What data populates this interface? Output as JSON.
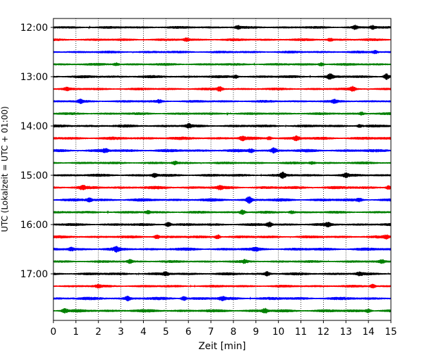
{
  "chart_data": {
    "type": "line",
    "title": "",
    "xlabel": "Zeit  [min]",
    "ylabel": "UTC (Lokalzeit = UTC + 01:00)",
    "xlim": [
      0,
      15
    ],
    "x_ticks": [
      "0",
      "1",
      "2",
      "3",
      "4",
      "5",
      "6",
      "7",
      "8",
      "9",
      "10",
      "11",
      "12",
      "13",
      "14",
      "15"
    ],
    "y_ticks": [
      "12:00",
      "13:00",
      "14:00",
      "15:00",
      "16:00",
      "17:00"
    ],
    "grid": "vertical-dotted",
    "color_cycle": [
      "#000000",
      "#ff0000",
      "#0000ff",
      "#008000"
    ],
    "series": [
      {
        "start": "12:00",
        "amplitude": 0.6,
        "events": [
          [
            8.2,
            0.9
          ],
          [
            13.4,
            1.0
          ],
          [
            14.2,
            1.0
          ]
        ]
      },
      {
        "start": "12:15",
        "amplitude": 0.6,
        "events": [
          [
            5.9,
            0.9
          ],
          [
            12.3,
            0.8
          ]
        ]
      },
      {
        "start": "12:30",
        "amplitude": 0.6,
        "events": [
          [
            14.3,
            0.9
          ]
        ]
      },
      {
        "start": "12:45",
        "amplitude": 0.6,
        "events": [
          [
            2.8,
            0.8
          ],
          [
            11.9,
            1.0
          ]
        ]
      },
      {
        "start": "13:00",
        "amplitude": 0.7,
        "events": [
          [
            12.3,
            1.6
          ],
          [
            14.8,
            1.7
          ],
          [
            8.1,
            0.9
          ]
        ]
      },
      {
        "start": "13:15",
        "amplitude": 0.6,
        "events": [
          [
            7.4,
            1.3
          ],
          [
            13.3,
            1.2
          ],
          [
            0.6,
            0.8
          ]
        ]
      },
      {
        "start": "13:30",
        "amplitude": 0.6,
        "events": [
          [
            1.2,
            1.0
          ],
          [
            4.7,
            0.8
          ],
          [
            12.5,
            0.8
          ]
        ]
      },
      {
        "start": "13:45",
        "amplitude": 0.6,
        "events": [
          [
            13.7,
            0.8
          ]
        ]
      },
      {
        "start": "14:00",
        "amplitude": 0.7,
        "events": [
          [
            6.0,
            1.1
          ],
          [
            13.6,
            0.8
          ]
        ]
      },
      {
        "start": "14:15",
        "amplitude": 0.8,
        "events": [
          [
            8.4,
            1.1
          ],
          [
            10.8,
            1.3
          ],
          [
            9.6,
            0.9
          ]
        ]
      },
      {
        "start": "14:30",
        "amplitude": 0.8,
        "events": [
          [
            2.3,
            1.0
          ],
          [
            9.8,
            1.4
          ],
          [
            8.8,
            1.0
          ]
        ]
      },
      {
        "start": "14:45",
        "amplitude": 0.6,
        "events": [
          [
            5.4,
            0.9
          ],
          [
            11.5,
            0.8
          ]
        ]
      },
      {
        "start": "15:00",
        "amplitude": 0.7,
        "events": [
          [
            4.5,
            1.0
          ],
          [
            10.2,
            1.5
          ],
          [
            13.0,
            0.9
          ]
        ]
      },
      {
        "start": "15:15",
        "amplitude": 0.8,
        "events": [
          [
            1.3,
            1.0
          ],
          [
            7.4,
            0.9
          ],
          [
            14.9,
            1.0
          ]
        ]
      },
      {
        "start": "15:30",
        "amplitude": 0.8,
        "events": [
          [
            8.7,
            1.9
          ],
          [
            1.6,
            1.0
          ],
          [
            13.6,
            0.8
          ]
        ]
      },
      {
        "start": "15:45",
        "amplitude": 0.6,
        "events": [
          [
            8.4,
            1.3
          ],
          [
            10.6,
            0.8
          ],
          [
            4.2,
            0.9
          ]
        ]
      },
      {
        "start": "16:00",
        "amplitude": 0.7,
        "events": [
          [
            5.1,
            1.4
          ],
          [
            9.6,
            1.4
          ],
          [
            12.2,
            1.0
          ]
        ]
      },
      {
        "start": "16:15",
        "amplitude": 0.7,
        "events": [
          [
            4.6,
            1.1
          ],
          [
            7.3,
            1.3
          ],
          [
            14.8,
            0.9
          ]
        ]
      },
      {
        "start": "16:30",
        "amplitude": 0.8,
        "events": [
          [
            2.8,
            1.2
          ],
          [
            0.8,
            0.9
          ],
          [
            9.0,
            0.9
          ]
        ]
      },
      {
        "start": "16:45",
        "amplitude": 0.6,
        "events": [
          [
            3.4,
            1.0
          ],
          [
            8.5,
            0.8
          ],
          [
            14.6,
            0.8
          ]
        ]
      },
      {
        "start": "17:00",
        "amplitude": 0.7,
        "events": [
          [
            9.5,
            1.2
          ],
          [
            5.0,
            1.0
          ],
          [
            13.6,
            0.9
          ]
        ]
      },
      {
        "start": "17:15",
        "amplitude": 0.6,
        "events": [
          [
            2.0,
            0.8
          ],
          [
            14.2,
            1.1
          ]
        ]
      },
      {
        "start": "17:30",
        "amplitude": 0.8,
        "events": [
          [
            3.3,
            1.1
          ],
          [
            5.8,
            1.2
          ],
          [
            7.5,
            1.0
          ]
        ]
      },
      {
        "start": "17:45",
        "amplitude": 0.8,
        "events": [
          [
            0.5,
            1.3
          ],
          [
            9.4,
            1.3
          ],
          [
            14.0,
            1.1
          ]
        ]
      }
    ]
  }
}
